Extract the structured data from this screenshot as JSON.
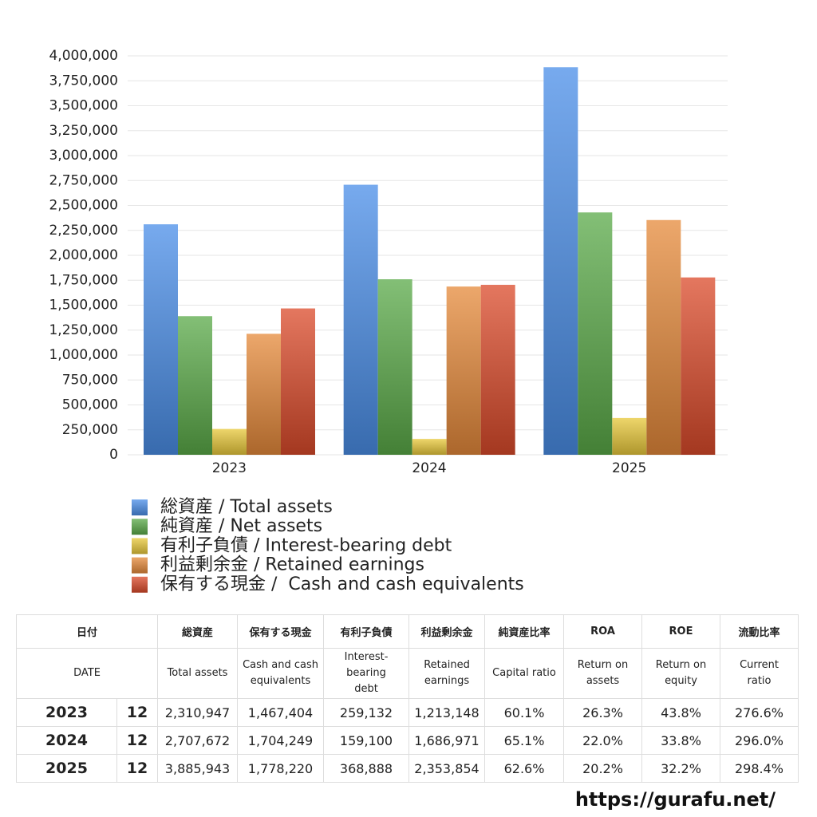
{
  "chart_data": {
    "type": "bar",
    "categories": [
      "2023",
      "2024",
      "2025"
    ],
    "series": [
      {
        "name": "総資産 / Total assets",
        "color": "#4a8ee8",
        "values": [
          2310947,
          2707672,
          3885943
        ]
      },
      {
        "name": "純資産 / Net assets",
        "color": "#5aaa48",
        "values": [
          1390000,
          1760000,
          2430000
        ]
      },
      {
        "name": "有利子負債 / Interest-bearing debt",
        "color": "#e8c83a",
        "values": [
          259132,
          159100,
          368888
        ]
      },
      {
        "name": "利益剰余金 / Retained earnings",
        "color": "#e5893a",
        "values": [
          1213148,
          1686971,
          2353854
        ]
      },
      {
        "name": "保有する現金 /  Cash and cash equivalents",
        "color": "#db4a2a",
        "values": [
          1467404,
          1704249,
          1778220
        ]
      }
    ],
    "ylim": [
      0,
      4000000
    ],
    "yticks": [
      0,
      {
        "value": 250000,
        "label": "250,000"
      },
      {
        "value": 500000,
        "label": "500,000"
      },
      {
        "value": 750000,
        "label": "750,000"
      },
      {
        "value": 1000000,
        "label": "1,000,000"
      },
      {
        "value": 1250000,
        "label": "1,250,000"
      },
      {
        "value": 1500000,
        "label": "1,500,000"
      },
      {
        "value": 1750000,
        "label": "1,750,000"
      },
      {
        "value": 2000000,
        "label": "2,000,000"
      },
      {
        "value": 2250000,
        "label": "2,250,000"
      },
      {
        "value": 2500000,
        "label": "2,500,000"
      },
      {
        "value": 2750000,
        "label": "2,750,000"
      },
      {
        "value": 3000000,
        "label": "3,000,000"
      },
      {
        "value": 3250000,
        "label": "3,250,000"
      },
      {
        "value": 3500000,
        "label": "3,500,000"
      },
      {
        "value": 3750000,
        "label": "3,750,000"
      },
      {
        "value": 4000000,
        "label": "4,000,000"
      }
    ],
    "grid": true,
    "legend": "bottom"
  },
  "table": {
    "header_ja": [
      "日付",
      "総資産",
      "保有する現金",
      "有利子負債",
      "利益剰余金",
      "純資産比率",
      "ROA",
      "ROE",
      "流動比率"
    ],
    "header_en": [
      "DATE",
      "Total assets",
      "Cash and cash\nequivalents",
      "Interest-\nbearing\ndebt",
      "Retained\nearnings",
      "Capital ratio",
      "Return on\nassets",
      "Return on\nequity",
      "Current\nratio"
    ],
    "rows": [
      [
        "2023",
        "12",
        "2,310,947",
        "1,467,404",
        "259,132",
        "1,213,148",
        "60.1%",
        "26.3%",
        "43.8%",
        "276.6%"
      ],
      [
        "2024",
        "12",
        "2,707,672",
        "1,704,249",
        "159,100",
        "1,686,971",
        "65.1%",
        "22.0%",
        "33.8%",
        "296.0%"
      ],
      [
        "2025",
        "12",
        "3,885,943",
        "1,778,220",
        "368,888",
        "2,353,854",
        "62.6%",
        "20.2%",
        "32.2%",
        "298.4%"
      ]
    ]
  },
  "footer": "https://gurafu.net/"
}
